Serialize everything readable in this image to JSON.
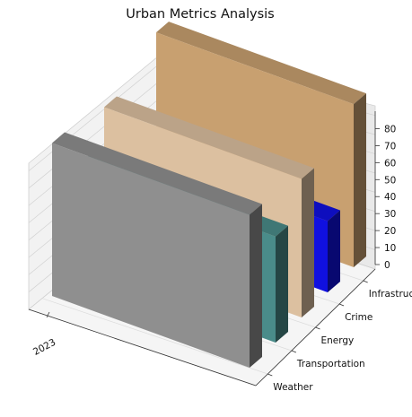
{
  "chart_data": {
    "type": "bar3d",
    "title": "Urban Metrics Analysis",
    "x_categories": [
      "2023"
    ],
    "y_categories": [
      "Weather",
      "Transportation",
      "Energy",
      "Crime",
      "Infrastructure"
    ],
    "z_ticks": [
      0,
      10,
      20,
      30,
      40,
      50,
      60,
      70,
      80
    ],
    "zlim": [
      0,
      85
    ],
    "grid": true,
    "series": [
      {
        "category": "Weather",
        "value": 75,
        "color": "#8f8f8f"
      },
      {
        "category": "Transportation",
        "value": 52,
        "color": "#4a8c8a"
      },
      {
        "category": "Energy",
        "value": 68,
        "color": "#dcc0a0"
      },
      {
        "category": "Crime",
        "value": 35,
        "color": "#1010e0"
      },
      {
        "category": "Infrastructure",
        "value": 80,
        "color": "#c8a070"
      }
    ]
  }
}
